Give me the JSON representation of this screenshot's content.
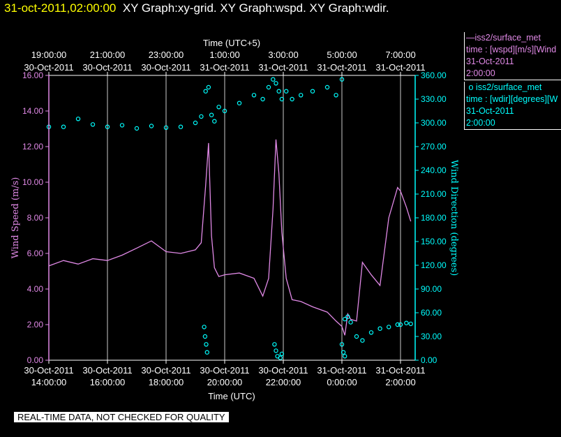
{
  "header": {
    "timestamp": "31-oct-2011,02:00:00",
    "graphs": "XY Graph:xy-grid.  XY Graph:wspd.  XY Graph:wdir."
  },
  "legend": {
    "wspd": {
      "symbol": "—",
      "line1": "iss2/surface_met",
      "line2": "time : [wspd][m/s][Wind",
      "line3": "31-Oct-2011",
      "line4": "2:00:00"
    },
    "wdir": {
      "symbol": "o",
      "line1": "iss2/surface_met",
      "line2": "time : [wdir][degrees][W",
      "line3": "31-Oct-2011",
      "line4": "2:00:00"
    }
  },
  "footer": {
    "quality_note": "REAL-TIME DATA, NOT CHECKED FOR QUALITY"
  },
  "colors": {
    "wspd": "#e089e6",
    "wdir": "#00ffff",
    "timestamp": "#ffff00"
  },
  "chart_data": {
    "type": "line",
    "top_xlabel": "Time (UTC+5)",
    "xlabel": "Time (UTC)",
    "ylabel": "Wind Speed (m/s)",
    "y2label": "Wind Direction (degrees)",
    "xlim_hours": [
      14,
      26.5
    ],
    "ylim": [
      0,
      16
    ],
    "y2lim": [
      0,
      360
    ],
    "yticks": [
      "0.00",
      "2.00",
      "4.00",
      "6.00",
      "8.00",
      "10.00",
      "12.00",
      "14.00",
      "16.00"
    ],
    "y2ticks": [
      "0.00",
      "30.00",
      "60.00",
      "90.00",
      "120.00",
      "150.00",
      "180.00",
      "210.00",
      "240.00",
      "270.00",
      "300.00",
      "330.00",
      "360.00"
    ],
    "bottom_ticks": [
      {
        "t": 14,
        "date": "30-Oct-2011",
        "time": "14:00:00"
      },
      {
        "t": 16,
        "date": "30-Oct-2011",
        "time": "16:00:00"
      },
      {
        "t": 18,
        "date": "30-Oct-2011",
        "time": "18:00:00"
      },
      {
        "t": 20,
        "date": "30-Oct-2011",
        "time": "20:00:00"
      },
      {
        "t": 22,
        "date": "30-Oct-2011",
        "time": "22:00:00"
      },
      {
        "t": 24,
        "date": "31-Oct-2011",
        "time": "0:00:00"
      },
      {
        "t": 26,
        "date": "31-Oct-2011",
        "time": "2:00:00"
      }
    ],
    "top_ticks": [
      {
        "t": 14,
        "date": "30-Oct-2011",
        "time": "19:00:00"
      },
      {
        "t": 16,
        "date": "30-Oct-2011",
        "time": "21:00:00"
      },
      {
        "t": 18,
        "date": "30-Oct-2011",
        "time": "23:00:00"
      },
      {
        "t": 20,
        "date": "31-Oct-2011",
        "time": "1:00:00"
      },
      {
        "t": 22,
        "date": "31-Oct-2011",
        "time": "3:00:00"
      },
      {
        "t": 24,
        "date": "31-Oct-2011",
        "time": "5:00:00"
      },
      {
        "t": 26,
        "date": "31-Oct-2011",
        "time": "7:00:00"
      }
    ],
    "grid": true,
    "series": [
      {
        "name": "iss2/surface_met wspd",
        "axis": "left",
        "style": "line",
        "x": [
          14.0,
          14.5,
          15.0,
          15.5,
          16.0,
          16.5,
          17.0,
          17.5,
          18.0,
          18.5,
          19.0,
          19.2,
          19.35,
          19.45,
          19.55,
          19.65,
          19.8,
          20.0,
          20.5,
          21.0,
          21.3,
          21.5,
          21.65,
          21.75,
          21.85,
          21.95,
          22.1,
          22.3,
          22.6,
          23.0,
          23.5,
          23.8,
          24.0,
          24.1,
          24.2,
          24.3,
          24.5,
          24.7,
          25.0,
          25.3,
          25.6,
          25.9,
          26.0,
          26.2,
          26.35
        ],
        "y": [
          5.3,
          5.6,
          5.4,
          5.7,
          5.6,
          5.9,
          6.3,
          6.7,
          6.1,
          6.0,
          6.2,
          6.6,
          9.8,
          12.2,
          7.0,
          5.2,
          4.7,
          4.8,
          4.9,
          4.6,
          3.6,
          4.6,
          8.5,
          12.4,
          10.5,
          7.2,
          4.6,
          3.4,
          3.3,
          3.0,
          2.7,
          2.2,
          1.9,
          1.4,
          2.6,
          2.3,
          2.2,
          5.5,
          4.8,
          4.2,
          8.0,
          9.7,
          9.5,
          8.6,
          7.8
        ]
      },
      {
        "name": "iss2/surface_met wdir",
        "axis": "right",
        "style": "markers",
        "x": [
          14.0,
          14.5,
          15.0,
          15.5,
          16.0,
          16.5,
          17.0,
          17.5,
          18.0,
          18.5,
          19.0,
          19.2,
          19.35,
          19.45,
          19.55,
          19.65,
          19.8,
          20.0,
          20.5,
          21.0,
          21.3,
          21.5,
          21.65,
          21.75,
          21.85,
          21.95,
          22.1,
          22.3,
          22.6,
          23.0,
          23.5,
          23.8,
          24.0,
          24.1,
          24.2,
          24.3,
          24.5,
          24.7,
          25.0,
          25.3,
          25.6,
          25.9,
          26.0,
          26.2,
          26.35
        ],
        "y": [
          295,
          295,
          305,
          298,
          295,
          297,
          293,
          296,
          294,
          295,
          300,
          308,
          340,
          345,
          310,
          302,
          320,
          315,
          325,
          335,
          330,
          345,
          355,
          350,
          340,
          330,
          340,
          330,
          335,
          340,
          345,
          335,
          355,
          52,
          55,
          48,
          30,
          25,
          35,
          40,
          42,
          45,
          45,
          47,
          46
        ]
      },
      {
        "name": "wdir low excursions",
        "axis": "right",
        "style": "markers",
        "x": [
          19.3,
          19.33,
          19.37,
          19.4,
          21.7,
          21.75,
          21.8,
          21.9,
          21.95,
          24.0,
          24.05,
          24.1
        ],
        "y": [
          42,
          30,
          20,
          10,
          20,
          12,
          5,
          3,
          8,
          20,
          10,
          5
        ]
      }
    ]
  }
}
